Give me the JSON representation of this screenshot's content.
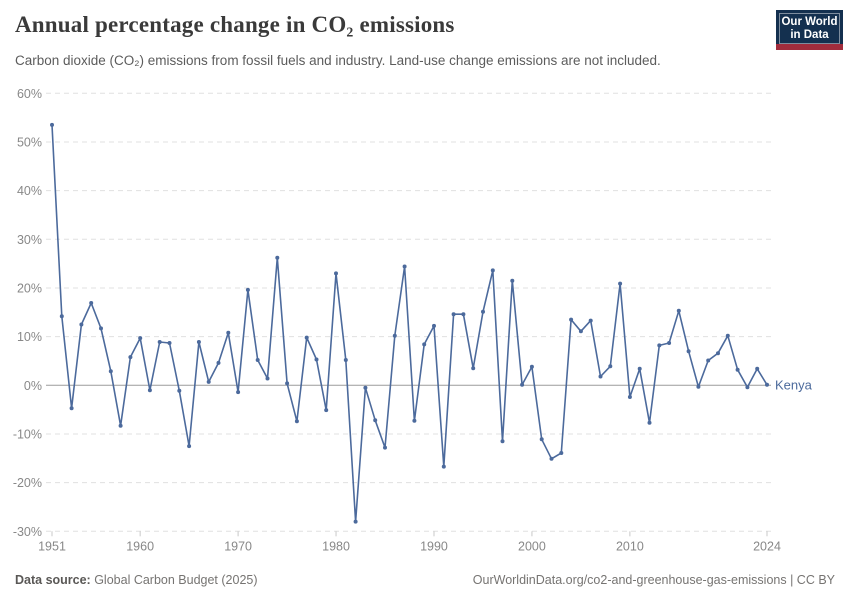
{
  "header": {
    "title": "Annual percentage change in CO₂ emissions",
    "subtitle": "Carbon dioxide (CO₂) emissions from fossil fuels and industry. Land-use change emissions are not included.",
    "logo": {
      "line1": "Our World",
      "line2": "in Data"
    }
  },
  "chart_data": {
    "type": "line",
    "title": "Annual percentage change in CO₂ emissions",
    "xlabel": "",
    "ylabel": "",
    "ylim": [
      -30,
      60
    ],
    "grid": "horizontal-dashed",
    "legend_position": "end-of-line-label",
    "yticks": [
      {
        "v": 60,
        "label": "60%"
      },
      {
        "v": 50,
        "label": "50%"
      },
      {
        "v": 40,
        "label": "40%"
      },
      {
        "v": 30,
        "label": "30%"
      },
      {
        "v": 20,
        "label": "20%"
      },
      {
        "v": 10,
        "label": "10%"
      },
      {
        "v": 0,
        "label": "0%"
      },
      {
        "v": -10,
        "label": "-10%"
      },
      {
        "v": -20,
        "label": "-20%"
      },
      {
        "v": -30,
        "label": "-30%"
      }
    ],
    "xticks": [
      {
        "year": 1951,
        "label": "1951"
      },
      {
        "year": 1960,
        "label": "1960"
      },
      {
        "year": 1970,
        "label": "1970"
      },
      {
        "year": 1980,
        "label": "1980"
      },
      {
        "year": 1990,
        "label": "1990"
      },
      {
        "year": 2000,
        "label": "2000"
      },
      {
        "year": 2010,
        "label": "2010"
      },
      {
        "year": 2024,
        "label": "2024"
      }
    ],
    "series": [
      {
        "name": "Kenya",
        "color": "#4C6A9C",
        "x": [
          1951,
          1952,
          1953,
          1954,
          1955,
          1956,
          1957,
          1958,
          1959,
          1960,
          1961,
          1962,
          1963,
          1964,
          1965,
          1966,
          1967,
          1968,
          1969,
          1970,
          1971,
          1972,
          1973,
          1974,
          1975,
          1976,
          1977,
          1978,
          1979,
          1980,
          1981,
          1982,
          1983,
          1984,
          1985,
          1986,
          1987,
          1988,
          1989,
          1990,
          1991,
          1992,
          1993,
          1994,
          1995,
          1996,
          1997,
          1998,
          1999,
          2000,
          2001,
          2002,
          2003,
          2004,
          2005,
          2006,
          2007,
          2008,
          2009,
          2010,
          2011,
          2012,
          2013,
          2014,
          2015,
          2016,
          2017,
          2018,
          2019,
          2020,
          2021,
          2022,
          2023,
          2024
        ],
        "values": [
          53.5,
          14.2,
          -4.7,
          12.5,
          16.9,
          11.7,
          2.9,
          -8.3,
          5.8,
          9.7,
          -1.0,
          8.9,
          8.7,
          -1.1,
          -12.5,
          8.9,
          0.7,
          4.6,
          10.8,
          -1.4,
          19.6,
          5.2,
          1.4,
          26.2,
          0.4,
          -7.4,
          9.8,
          5.3,
          -5.1,
          23.0,
          5.2,
          -28.0,
          -0.5,
          -7.2,
          -12.8,
          10.2,
          24.4,
          -7.3,
          8.4,
          12.2,
          -16.7,
          14.6,
          14.6,
          3.5,
          15.1,
          23.6,
          -11.5,
          21.5,
          0.1,
          3.8,
          -11.1,
          -15.1,
          -13.9,
          13.5,
          11.1,
          13.3,
          1.8,
          3.9,
          20.9,
          -2.4,
          3.4,
          -7.7,
          8.2,
          8.7,
          15.3,
          7.0,
          -0.3,
          5.1,
          6.6,
          10.2,
          3.2,
          -0.4,
          3.4,
          0.1
        ]
      }
    ]
  },
  "footer": {
    "source_label": "Data source:",
    "source_value": " Global Carbon Budget (2025)",
    "link": "OurWorldinData.org/co2-and-greenhouse-gas-emissions | CC BY"
  },
  "colors": {
    "line": "#4C6A9C",
    "entity_label": "#4C6A9C",
    "gridline": "#e0e0e0",
    "zero_line": "#9b9b9b",
    "axis_tick": "#c8c8c8",
    "tick_text": "#888888",
    "logo_bg": "#14304f",
    "logo_red": "#a12c3c"
  }
}
